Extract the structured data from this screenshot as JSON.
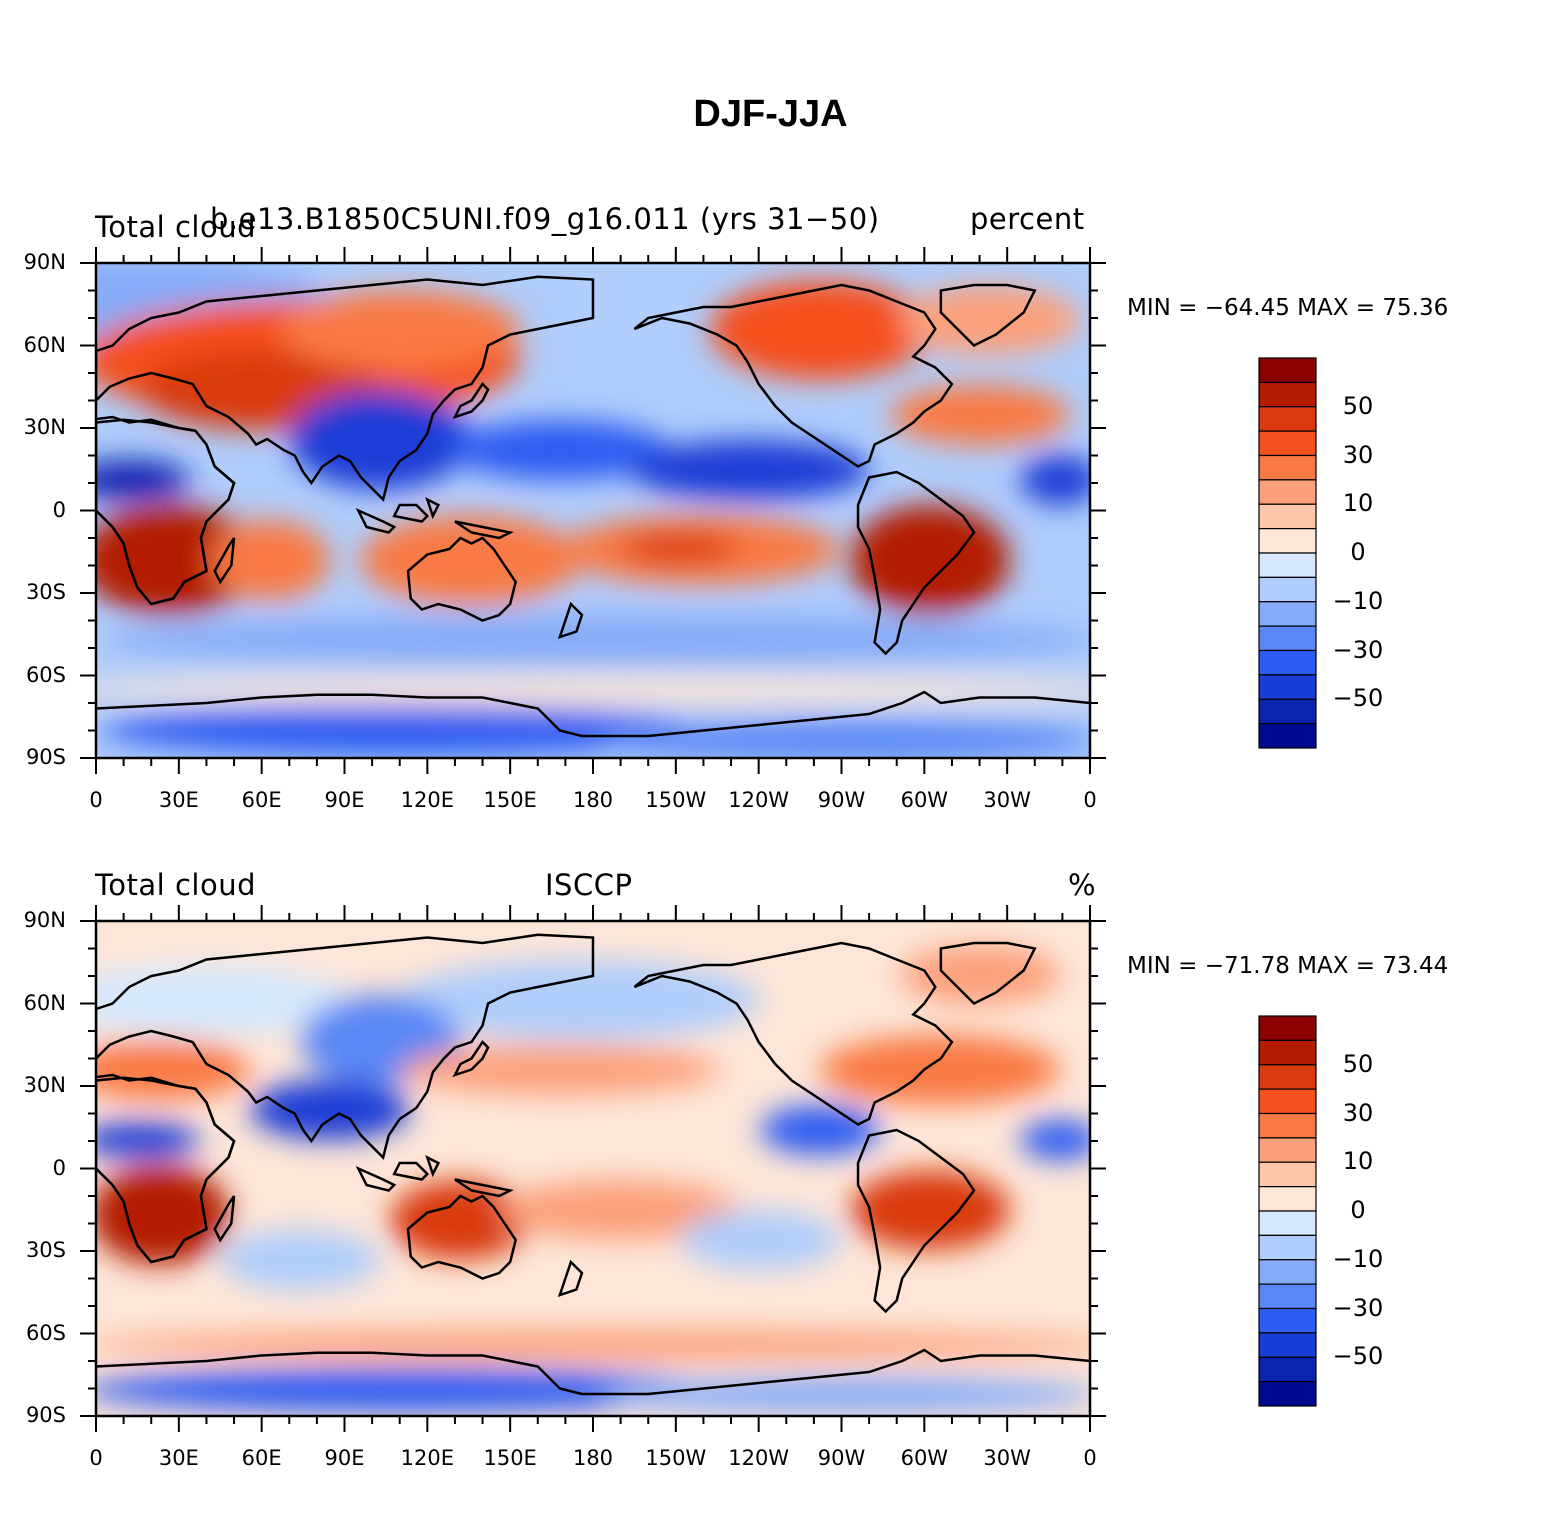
{
  "title": "DJF-JJA",
  "lat_labels": [
    "90N",
    "60N",
    "30N",
    "0",
    "30S",
    "60S",
    "90S"
  ],
  "lon_labels": [
    "0",
    "30E",
    "60E",
    "90E",
    "120E",
    "150E",
    "180",
    "150W",
    "120W",
    "90W",
    "60W",
    "30W",
    "0"
  ],
  "colorbar": {
    "labels": [
      "50",
      "30",
      "10",
      "0",
      "−10",
      "−30",
      "−50"
    ],
    "colors": [
      "#8b0000",
      "#b31a00",
      "#d93a10",
      "#f5501f",
      "#f97a45",
      "#fca07c",
      "#fcc6a8",
      "#fde6d8",
      "#d5e8fd",
      "#b0cdfb",
      "#86abf8",
      "#5a87f5",
      "#2d5cf2",
      "#1a3dd6",
      "#0c23b0",
      "#000a8f"
    ]
  },
  "panels": [
    {
      "left_title": "Total cloud",
      "center_title": "b.e13.B1850C5UNI.f09_g16.011 (yrs 31−50)",
      "right_title": "percent",
      "stats": "MIN = −64.45 MAX =  75.36"
    },
    {
      "left_title": "Total cloud",
      "center_title": "ISCCP",
      "right_title": "%",
      "stats": "MIN = −71.78 MAX =  73.44"
    }
  ]
}
